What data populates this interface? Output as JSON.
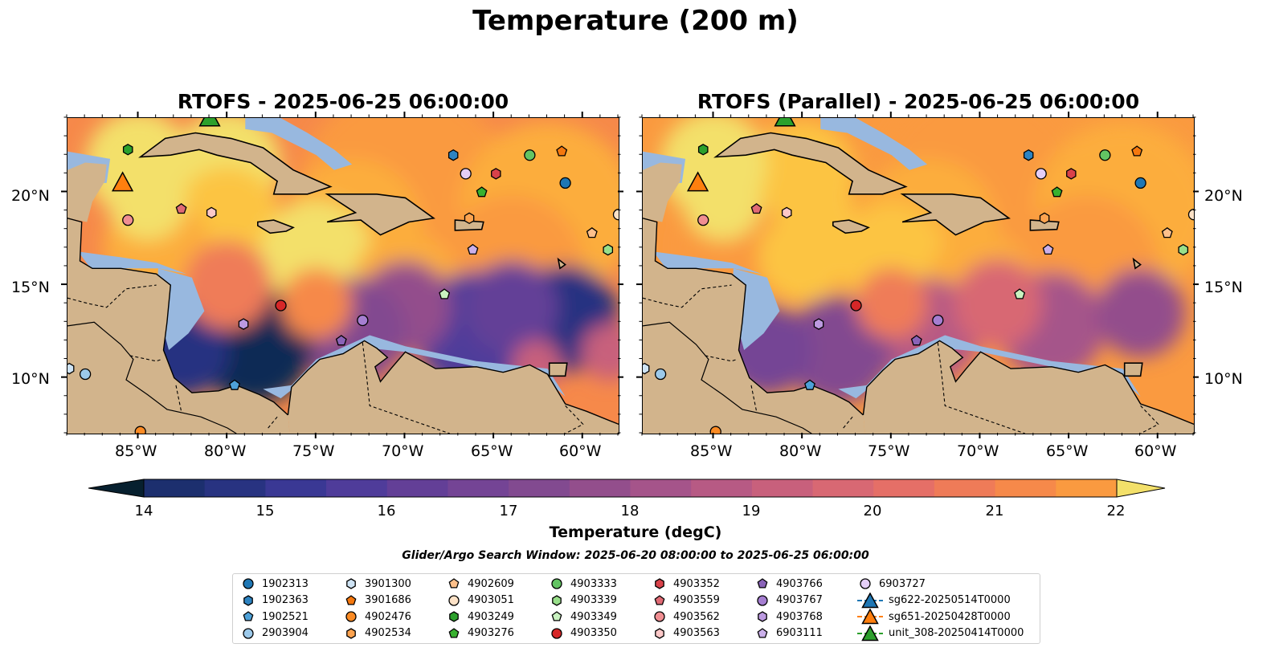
{
  "title": "Temperature (200 m)",
  "panels": [
    {
      "title": "RTOFS - 2025-06-25 06:00:00",
      "variant": "rtofs"
    },
    {
      "title": "RTOFS (Parallel) - 2025-06-25 06:00:00",
      "variant": "parallel"
    }
  ],
  "axes": {
    "lon_ticks": [
      "85°W",
      "80°W",
      "75°W",
      "70°W",
      "65°W",
      "60°W"
    ],
    "lat_ticks": [
      "20°N",
      "15°N",
      "10°N"
    ],
    "lon_range": [
      -89,
      -58
    ],
    "lat_range": [
      7,
      24
    ]
  },
  "colorbar": {
    "label": "Temperature (degC)",
    "ticks": [
      "14",
      "15",
      "16",
      "17",
      "18",
      "19",
      "20",
      "21",
      "22"
    ],
    "vmin": 14,
    "vmax": 22,
    "extend": "both",
    "colors": [
      "#07202f",
      "#0e2a55",
      "#1c2f6e",
      "#283381",
      "#3a3894",
      "#4f3c9a",
      "#633f97",
      "#744495",
      "#824a90",
      "#934e8c",
      "#a5548a",
      "#b75a84",
      "#c8607c",
      "#d86873",
      "#e56f67",
      "#ef7b58",
      "#f6894a",
      "#fa9a40",
      "#fcad3d",
      "#fcc442",
      "#f3e06a"
    ]
  },
  "search_window": "Glider/Argo Search Window: 2025-06-20 08:00:00 to 2025-06-25 06:00:00",
  "map_colors": {
    "land": "#d2b48c",
    "shelf": "#98b8df",
    "deep": "#07202f"
  },
  "legend": [
    {
      "label": "1902313",
      "marker": "circle",
      "color": "#1f77b4"
    },
    {
      "label": "1902363",
      "marker": "hexagon",
      "color": "#2d83c1"
    },
    {
      "label": "1902521",
      "marker": "pentagon",
      "color": "#4ea1d8"
    },
    {
      "label": "2903904",
      "marker": "circle",
      "color": "#9cc9ea"
    },
    {
      "label": "3901300",
      "marker": "hexagon",
      "color": "#cfe4f5"
    },
    {
      "label": "3901686",
      "marker": "pentagon",
      "color": "#f5780e"
    },
    {
      "label": "4902476",
      "marker": "circle",
      "color": "#fb8b24"
    },
    {
      "label": "4902534",
      "marker": "hexagon",
      "color": "#fda34f"
    },
    {
      "label": "4902609",
      "marker": "pentagon",
      "color": "#fdc08b"
    },
    {
      "label": "4903051",
      "marker": "circle",
      "color": "#fde2c7"
    },
    {
      "label": "4903249",
      "marker": "hexagon",
      "color": "#2ca02c"
    },
    {
      "label": "4903276",
      "marker": "pentagon",
      "color": "#38b12f"
    },
    {
      "label": "4903333",
      "marker": "circle",
      "color": "#63c463"
    },
    {
      "label": "4903339",
      "marker": "hexagon",
      "color": "#98df8a"
    },
    {
      "label": "4903349",
      "marker": "pentagon",
      "color": "#c9f2c0"
    },
    {
      "label": "4903350",
      "marker": "circle",
      "color": "#d62728"
    },
    {
      "label": "4903352",
      "marker": "hexagon",
      "color": "#d9424a"
    },
    {
      "label": "4903559",
      "marker": "pentagon",
      "color": "#e06a74"
    },
    {
      "label": "4903562",
      "marker": "circle",
      "color": "#f08e92"
    },
    {
      "label": "4903563",
      "marker": "hexagon",
      "color": "#fcc8c8"
    },
    {
      "label": "4903766",
      "marker": "pentagon",
      "color": "#8a63b8"
    },
    {
      "label": "4903767",
      "marker": "circle",
      "color": "#a57ed1"
    },
    {
      "label": "4903768",
      "marker": "hexagon",
      "color": "#bc9ae0"
    },
    {
      "label": "6903111",
      "marker": "pentagon",
      "color": "#cbb0ea"
    },
    {
      "label": "6903727",
      "marker": "circle",
      "color": "#e4cef7"
    },
    {
      "label": "sg622-20250514T0000",
      "marker": "triangle",
      "color": "#1f77b4"
    },
    {
      "label": "sg651-20250428T0000",
      "marker": "triangle",
      "color": "#ff7f0e"
    },
    {
      "label": "unit_308-20250414T0000",
      "marker": "triangle",
      "color": "#2ca02c"
    }
  ],
  "observations": [
    {
      "id": "4903249",
      "lon": -85.6,
      "lat": 22.3
    },
    {
      "id": "unit_308-20250414T0000",
      "lon": -81.0,
      "lat": 24.0
    },
    {
      "id": "sg651-20250428T0000",
      "lon": -85.9,
      "lat": 20.5
    },
    {
      "id": "4903559",
      "lon": -82.6,
      "lat": 19.1
    },
    {
      "id": "4903563",
      "lon": -80.9,
      "lat": 18.9
    },
    {
      "id": "4903562",
      "lon": -85.6,
      "lat": 18.5
    },
    {
      "id": "1902363",
      "lon": -67.3,
      "lat": 22.0
    },
    {
      "id": "4903333",
      "lon": -63.0,
      "lat": 22.0
    },
    {
      "id": "3901686",
      "lon": -61.2,
      "lat": 22.2
    },
    {
      "id": "6903727",
      "lon": -66.6,
      "lat": 21.0
    },
    {
      "id": "4903352",
      "lon": -64.9,
      "lat": 21.0
    },
    {
      "id": "4903276",
      "lon": -65.7,
      "lat": 20.0
    },
    {
      "id": "1902313",
      "lon": -61.0,
      "lat": 20.5
    },
    {
      "id": "4902534",
      "lon": -66.4,
      "lat": 18.6
    },
    {
      "id": "4902609",
      "lon": -59.5,
      "lat": 17.8
    },
    {
      "id": "4903051",
      "lon": -58.0,
      "lat": 18.8
    },
    {
      "id": "4903339",
      "lon": -58.6,
      "lat": 16.9
    },
    {
      "id": "6903111",
      "lon": -66.2,
      "lat": 16.9
    },
    {
      "id": "4903349",
      "lon": -67.8,
      "lat": 14.5
    },
    {
      "id": "4903350",
      "lon": -77.0,
      "lat": 13.9
    },
    {
      "id": "4903768",
      "lon": -79.1,
      "lat": 12.9
    },
    {
      "id": "4903767",
      "lon": -72.4,
      "lat": 13.1
    },
    {
      "id": "4903766",
      "lon": -73.6,
      "lat": 12.0
    },
    {
      "id": "1902521",
      "lon": -79.6,
      "lat": 9.6
    },
    {
      "id": "2903904",
      "lon": -88.0,
      "lat": 10.2
    },
    {
      "id": "3901300",
      "lon": -88.9,
      "lat": 10.5
    },
    {
      "id": "4902476",
      "lon": -84.9,
      "lat": 7.1
    }
  ]
}
